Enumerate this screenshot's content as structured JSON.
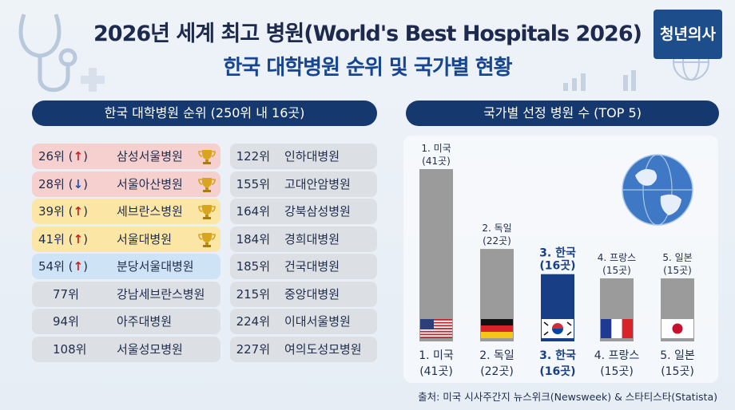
{
  "header": {
    "title_line1": "2026년 세계 최고 병원(World's Best Hospitals 2026)",
    "title_line2": "한국 대학병원 순위 및 국가별 현황",
    "logo_text": "청년의사"
  },
  "left_panel": {
    "heading": "한국 대학병원 순위 (250위 내 16곳)",
    "col1": [
      {
        "rank": "26위",
        "trend": "↑",
        "name": "삼성서울병원",
        "trophy": true,
        "color": "#f6cfcf"
      },
      {
        "rank": "28위",
        "trend": "↓",
        "name": "서울아산병원",
        "trophy": true,
        "color": "#f6cfcf"
      },
      {
        "rank": "39위",
        "trend": "↑",
        "name": "세브란스병원",
        "trophy": true,
        "color": "#fbe6a6"
      },
      {
        "rank": "41위",
        "trend": "↑",
        "name": "서울대병원",
        "trophy": true,
        "color": "#fbe6a6"
      },
      {
        "rank": "54위",
        "trend": "↑",
        "name": "분당서울대병원",
        "trophy": false,
        "color": "#cfe3f6"
      },
      {
        "rank": "77위",
        "trend": "",
        "name": "강남세브란스병원",
        "trophy": false,
        "color": "#dcdfe4"
      },
      {
        "rank": "94위",
        "trend": "",
        "name": "아주대병원",
        "trophy": false,
        "color": "#dcdfe4"
      },
      {
        "rank": "108위",
        "trend": "",
        "name": "서울성모병원",
        "trophy": false,
        "color": "#dcdfe4"
      }
    ],
    "col2": [
      {
        "rank": "122위",
        "name": "인하대병원"
      },
      {
        "rank": "155위",
        "name": "고대안암병원"
      },
      {
        "rank": "164위",
        "name": "강북삼성병원"
      },
      {
        "rank": "184위",
        "name": "경희대병원"
      },
      {
        "rank": "185위",
        "name": "건국대병원"
      },
      {
        "rank": "215위",
        "name": "중앙대병원"
      },
      {
        "rank": "224위",
        "name": "이대서울병원"
      },
      {
        "rank": "227위",
        "name": "여의도성모병원"
      }
    ]
  },
  "chart_data": {
    "type": "bar",
    "title": "국가별 선정 병원 수 (TOP 5)",
    "categories": [
      "1. 미국",
      "2. 독일",
      "3. 한국",
      "4. 프랑스",
      "5. 일본"
    ],
    "values": [
      41,
      22,
      16,
      15,
      15
    ],
    "value_labels": [
      "(41곳)",
      "(22곳)",
      "(16곳)",
      "(15곳)",
      "(15곳)"
    ],
    "highlight_index": 2,
    "colors": {
      "default": "#9b9b9b",
      "highlight": "#183f86"
    },
    "flags": [
      "us-flag-icon",
      "germany-flag-icon",
      "korea-flag-icon",
      "france-flag-icon",
      "japan-flag-icon"
    ],
    "ylim": [
      0,
      41
    ]
  },
  "footer": {
    "source": "출처: 미국 시사주간지 뉴스위크(Newsweek) & 스타티스타(Statista)"
  }
}
